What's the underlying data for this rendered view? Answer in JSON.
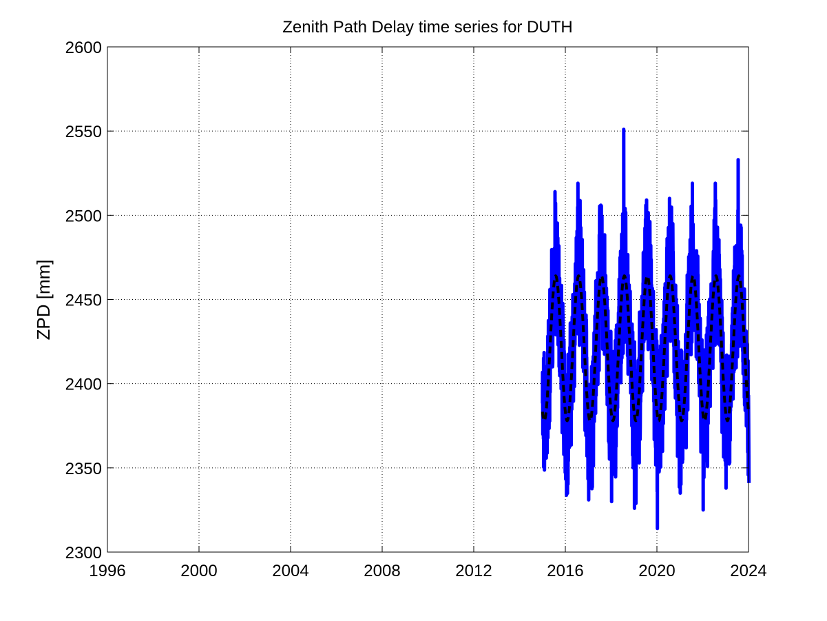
{
  "chart_data": {
    "type": "line",
    "title": "Zenith Path Delay time series for DUTH",
    "xlabel": "",
    "ylabel": "ZPD [mm]",
    "xlim": [
      1996,
      2024
    ],
    "ylim": [
      2300,
      2600
    ],
    "x_ticks": [
      1996,
      2000,
      2004,
      2008,
      2012,
      2016,
      2020,
      2024
    ],
    "y_ticks": [
      2300,
      2350,
      2400,
      2450,
      2500,
      2550,
      2600
    ],
    "x_tick_labels": [
      "1996",
      "2000",
      "2004",
      "2008",
      "2012",
      "2016",
      "2020",
      "2024"
    ],
    "y_tick_labels": [
      "2300",
      "2350",
      "2400",
      "2450",
      "2500",
      "2550",
      "2600"
    ],
    "grid": true,
    "legend": "none",
    "series": [
      {
        "style": "solid",
        "color": "#0000ff",
        "description_range": "observations from 2015.0 to 2024.0",
        "peaks": [
          {
            "x": 2015.55,
            "max": 2514,
            "min": 2345
          },
          {
            "x": 2016.55,
            "max": 2519,
            "min": 2331
          },
          {
            "x": 2017.55,
            "max": 2506,
            "min": 2330
          },
          {
            "x": 2018.55,
            "max": 2551,
            "min": 2326
          },
          {
            "x": 2019.55,
            "max": 2509,
            "min": 2314
          },
          {
            "x": 2020.55,
            "max": 2510,
            "min": 2335
          },
          {
            "x": 2021.55,
            "max": 2519,
            "min": 2325
          },
          {
            "x": 2022.55,
            "max": 2519,
            "min": 2338
          },
          {
            "x": 2023.55,
            "max": 2533,
            "min": 2341
          }
        ]
      },
      {
        "style": "dashed",
        "color": "#000000",
        "description": "seasonal model fit",
        "mean": 2421,
        "amplitude": 43,
        "peak_phase_year_fraction": 0.58,
        "x_start": 2015.0,
        "x_end": 2024.0
      }
    ]
  }
}
